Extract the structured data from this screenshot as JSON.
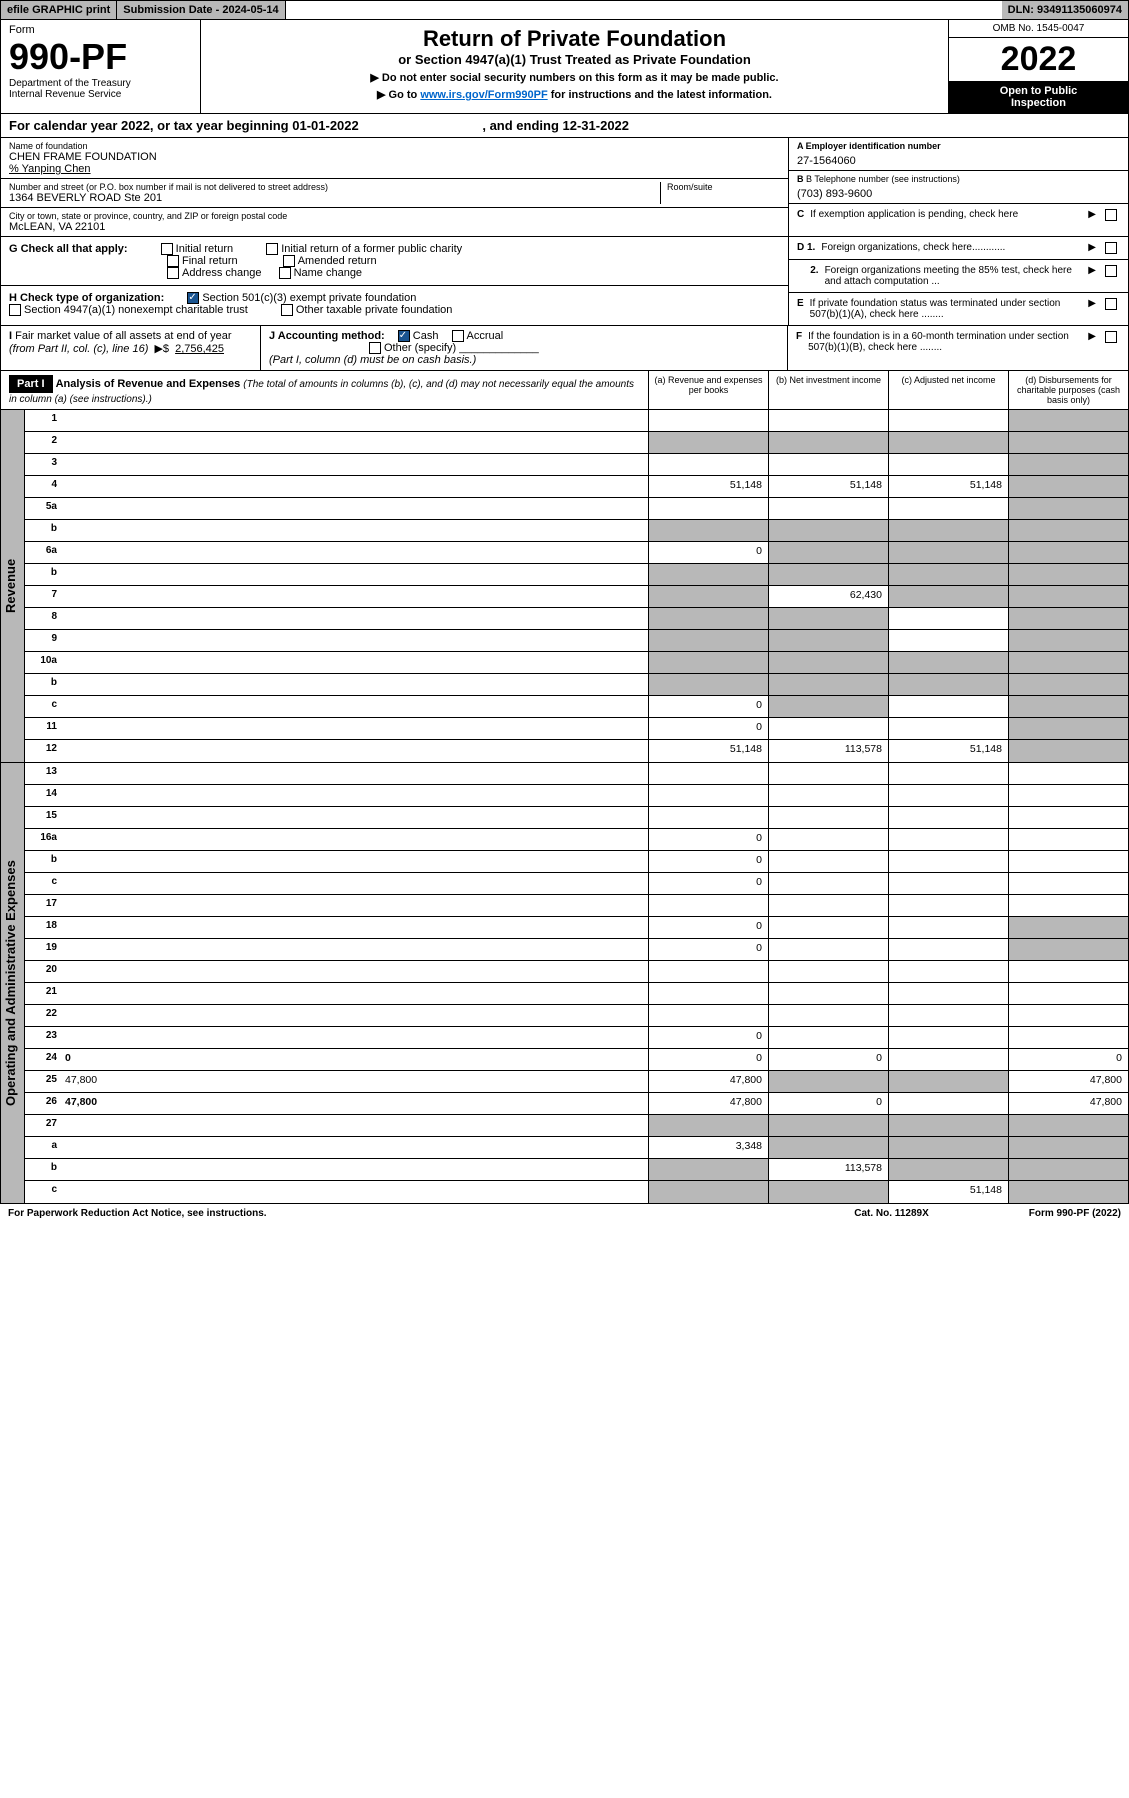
{
  "topbar": {
    "efile": "efile GRAPHIC print",
    "subdate_label": "Submission Date - ",
    "subdate": "2024-05-14",
    "dln_label": "DLN: ",
    "dln": "93491135060974"
  },
  "header": {
    "form_word": "Form",
    "form_no": "990-PF",
    "dept1": "Department of the Treasury",
    "dept2": "Internal Revenue Service",
    "title": "Return of Private Foundation",
    "subtitle": "or Section 4947(a)(1) Trust Treated as Private Foundation",
    "note1": "▶ Do not enter social security numbers on this form as it may be made public.",
    "note2_pre": "▶ Go to ",
    "note2_link": "www.irs.gov/Form990PF",
    "note2_post": " for instructions and the latest information.",
    "omb": "OMB No. 1545-0047",
    "year": "2022",
    "open1": "Open to Public",
    "open2": "Inspection"
  },
  "calyear": {
    "pre": "For calendar year 2022, or tax year beginning ",
    "begin": "01-01-2022",
    "mid": " , and ending ",
    "end": "12-31-2022"
  },
  "info": {
    "name_lbl": "Name of foundation",
    "name": "CHEN FRAME FOUNDATION",
    "care_of": "% Yanping Chen",
    "addr_lbl": "Number and street (or P.O. box number if mail is not delivered to street address)",
    "addr": "1364 BEVERLY ROAD Ste 201",
    "room_lbl": "Room/suite",
    "city_lbl": "City or town, state or province, country, and ZIP or foreign postal code",
    "city": "McLEAN, VA  22101",
    "ein_lbl": "A Employer identification number",
    "ein": "27-1564060",
    "phone_lbl": "B Telephone number (see instructions)",
    "phone": "(703) 893-9600",
    "c_text": "If exemption application is pending, check here",
    "d1_text": "Foreign organizations, check here............",
    "d2_text": "Foreign organizations meeting the 85% test, check here and attach computation ...",
    "e_text": "If private foundation status was terminated under section 507(b)(1)(A), check here ........",
    "f_text": "If the foundation is in a 60-month termination under section 507(b)(1)(B), check here ........"
  },
  "g": {
    "label": "G Check all that apply:",
    "opts": [
      "Initial return",
      "Initial return of a former public charity",
      "Final return",
      "Amended return",
      "Address change",
      "Name change"
    ]
  },
  "h": {
    "label": "H Check type of organization:",
    "opt1": "Section 501(c)(3) exempt private foundation",
    "opt2": "Section 4947(a)(1) nonexempt charitable trust",
    "opt3": "Other taxable private foundation"
  },
  "i": {
    "label": "I Fair market value of all assets at end of year (from Part II, col. (c), line 16)",
    "arrow": "▶$",
    "value": "2,756,425"
  },
  "j": {
    "label": "J Accounting method:",
    "cash": "Cash",
    "accrual": "Accrual",
    "other": "Other (specify)",
    "note": "(Part I, column (d) must be on cash basis.)"
  },
  "part1": {
    "label": "Part I",
    "title": "Analysis of Revenue and Expenses",
    "note": "(The total of amounts in columns (b), (c), and (d) may not necessarily equal the amounts in column (a) (see instructions).)",
    "col_a": "(a) Revenue and expenses per books",
    "col_b": "(b) Net investment income",
    "col_c": "(c) Adjusted net income",
    "col_d": "(d) Disbursements for charitable purposes (cash basis only)"
  },
  "revenue_label": "Revenue",
  "expenses_label": "Operating and Administrative Expenses",
  "rows": [
    {
      "n": "1",
      "d": "",
      "a": "",
      "b": "",
      "c": "",
      "shade": [
        "d"
      ]
    },
    {
      "n": "2",
      "d": "",
      "a": "",
      "b": "",
      "c": "",
      "shade": [
        "a",
        "b",
        "c",
        "d"
      ],
      "bold_not": true
    },
    {
      "n": "3",
      "d": "",
      "a": "",
      "b": "",
      "c": "",
      "shade": [
        "d"
      ]
    },
    {
      "n": "4",
      "d": "",
      "a": "51,148",
      "b": "51,148",
      "c": "51,148",
      "shade": [
        "d"
      ]
    },
    {
      "n": "5a",
      "d": "",
      "a": "",
      "b": "",
      "c": "",
      "shade": [
        "d"
      ]
    },
    {
      "n": "b",
      "d": "",
      "a": "",
      "b": "",
      "c": "",
      "shade": [
        "a",
        "b",
        "c",
        "d"
      ]
    },
    {
      "n": "6a",
      "d": "",
      "a": "0",
      "b": "",
      "c": "",
      "shade": [
        "b",
        "c",
        "d"
      ]
    },
    {
      "n": "b",
      "d": "",
      "a": "",
      "b": "",
      "c": "",
      "shade": [
        "a",
        "b",
        "c",
        "d"
      ]
    },
    {
      "n": "7",
      "d": "",
      "a": "",
      "b": "62,430",
      "c": "",
      "shade": [
        "a",
        "c",
        "d"
      ]
    },
    {
      "n": "8",
      "d": "",
      "a": "",
      "b": "",
      "c": "",
      "shade": [
        "a",
        "b",
        "d"
      ]
    },
    {
      "n": "9",
      "d": "",
      "a": "",
      "b": "",
      "c": "",
      "shade": [
        "a",
        "b",
        "d"
      ]
    },
    {
      "n": "10a",
      "d": "",
      "a": "",
      "b": "",
      "c": "",
      "shade": [
        "a",
        "b",
        "c",
        "d"
      ]
    },
    {
      "n": "b",
      "d": "",
      "a": "",
      "b": "",
      "c": "",
      "shade": [
        "a",
        "b",
        "c",
        "d"
      ]
    },
    {
      "n": "c",
      "d": "",
      "a": "0",
      "b": "",
      "c": "",
      "shade": [
        "b",
        "d"
      ]
    },
    {
      "n": "11",
      "d": "",
      "a": "0",
      "b": "",
      "c": "",
      "shade": [
        "d"
      ]
    },
    {
      "n": "12",
      "d": "",
      "a": "51,148",
      "b": "113,578",
      "c": "51,148",
      "shade": [
        "d"
      ],
      "bold": true
    }
  ],
  "exp_rows": [
    {
      "n": "13",
      "d": "",
      "a": "",
      "b": "",
      "c": ""
    },
    {
      "n": "14",
      "d": "",
      "a": "",
      "b": "",
      "c": ""
    },
    {
      "n": "15",
      "d": "",
      "a": "",
      "b": "",
      "c": ""
    },
    {
      "n": "16a",
      "d": "",
      "a": "0",
      "b": "",
      "c": ""
    },
    {
      "n": "b",
      "d": "",
      "a": "0",
      "b": "",
      "c": ""
    },
    {
      "n": "c",
      "d": "",
      "a": "0",
      "b": "",
      "c": ""
    },
    {
      "n": "17",
      "d": "",
      "a": "",
      "b": "",
      "c": ""
    },
    {
      "n": "18",
      "d": "",
      "a": "0",
      "b": "",
      "c": "",
      "shade": [
        "d"
      ]
    },
    {
      "n": "19",
      "d": "",
      "a": "0",
      "b": "",
      "c": "",
      "shade": [
        "d"
      ]
    },
    {
      "n": "20",
      "d": "",
      "a": "",
      "b": "",
      "c": ""
    },
    {
      "n": "21",
      "d": "",
      "a": "",
      "b": "",
      "c": ""
    },
    {
      "n": "22",
      "d": "",
      "a": "",
      "b": "",
      "c": ""
    },
    {
      "n": "23",
      "d": "",
      "a": "0",
      "b": "",
      "c": ""
    },
    {
      "n": "24",
      "d": "0",
      "a": "0",
      "b": "0",
      "c": "",
      "bold": true
    },
    {
      "n": "25",
      "d": "47,800",
      "a": "47,800",
      "b": "",
      "c": "",
      "shade": [
        "b",
        "c"
      ]
    },
    {
      "n": "26",
      "d": "47,800",
      "a": "47,800",
      "b": "0",
      "c": "",
      "bold": true
    },
    {
      "n": "27",
      "d": "",
      "a": "",
      "b": "",
      "c": "",
      "shade": [
        "a",
        "b",
        "c",
        "d"
      ]
    },
    {
      "n": "a",
      "d": "",
      "a": "3,348",
      "b": "",
      "c": "",
      "shade": [
        "b",
        "c",
        "d"
      ],
      "bold": true
    },
    {
      "n": "b",
      "d": "",
      "a": "",
      "b": "113,578",
      "c": "",
      "shade": [
        "a",
        "c",
        "d"
      ],
      "bold": true
    },
    {
      "n": "c",
      "d": "",
      "a": "",
      "b": "",
      "c": "51,148",
      "shade": [
        "a",
        "b",
        "d"
      ],
      "bold": true
    }
  ],
  "footer": {
    "left": "For Paperwork Reduction Act Notice, see instructions.",
    "mid": "Cat. No. 11289X",
    "right": "Form 990-PF (2022)"
  }
}
